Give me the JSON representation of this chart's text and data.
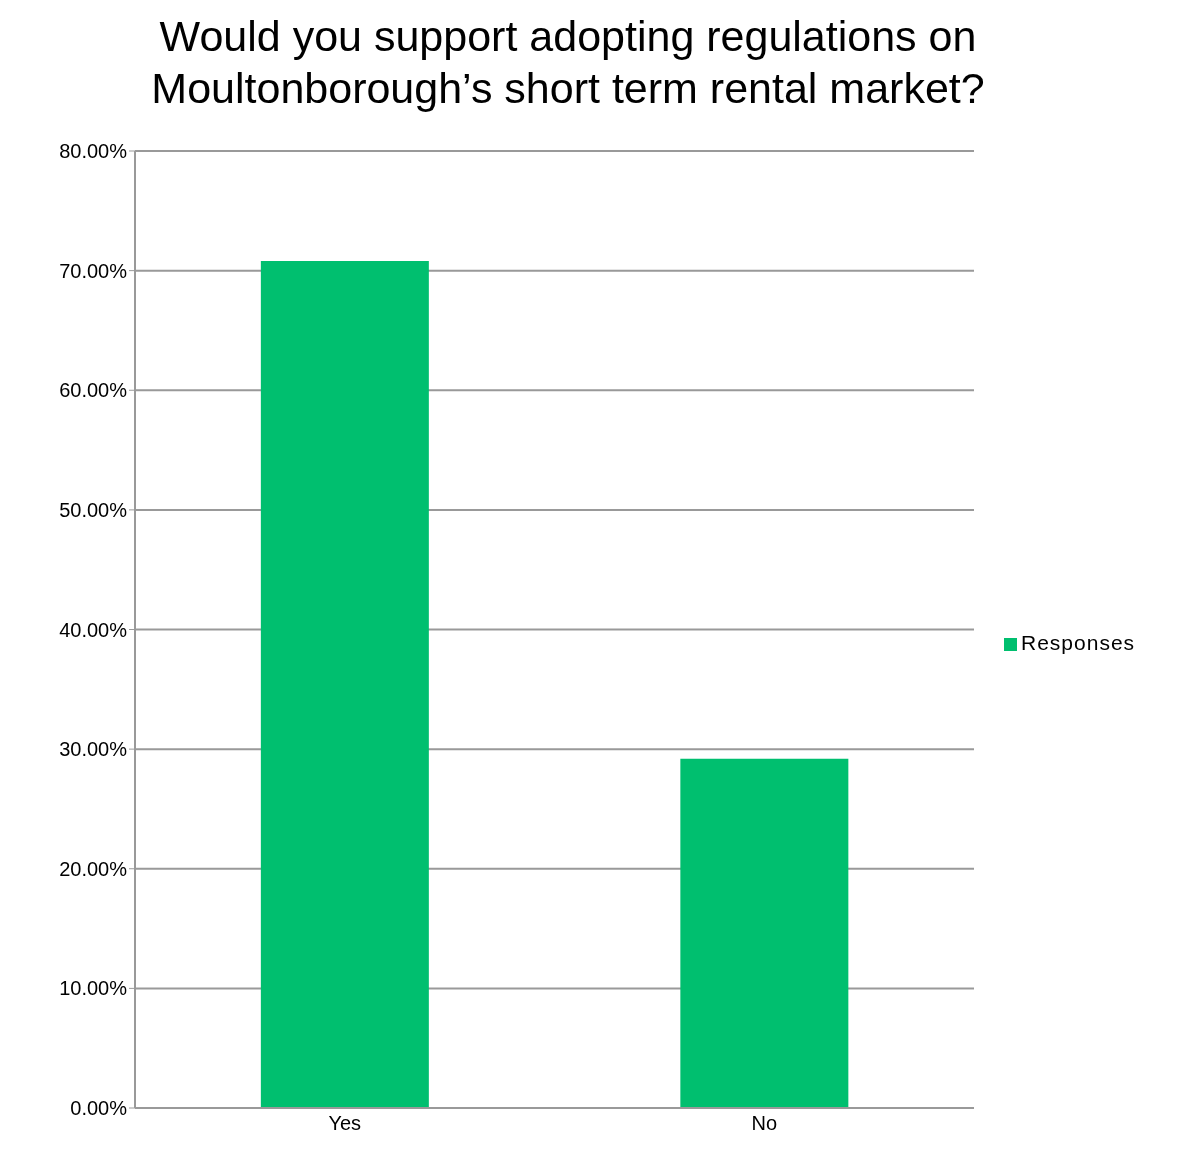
{
  "chart_data": {
    "type": "bar",
    "title": "Would you support adopting regulations on Moultonborough’s short term rental market?",
    "categories": [
      "Yes",
      "No"
    ],
    "series": [
      {
        "name": "Responses",
        "color": "#00bf6f",
        "values": [
          70.8,
          29.2
        ]
      }
    ],
    "ylim": [
      0,
      80
    ],
    "yticks": [
      {
        "value": 0,
        "label": "0.00%"
      },
      {
        "value": 10,
        "label": "10.00%"
      },
      {
        "value": 20,
        "label": "20.00%"
      },
      {
        "value": 30,
        "label": "30.00%"
      },
      {
        "value": 40,
        "label": "40.00%"
      },
      {
        "value": 50,
        "label": "50.00%"
      },
      {
        "value": 60,
        "label": "60.00%"
      },
      {
        "value": 70,
        "label": "70.00%"
      },
      {
        "value": 80,
        "label": "80.00%"
      }
    ],
    "grid": "y",
    "legend": "right"
  }
}
